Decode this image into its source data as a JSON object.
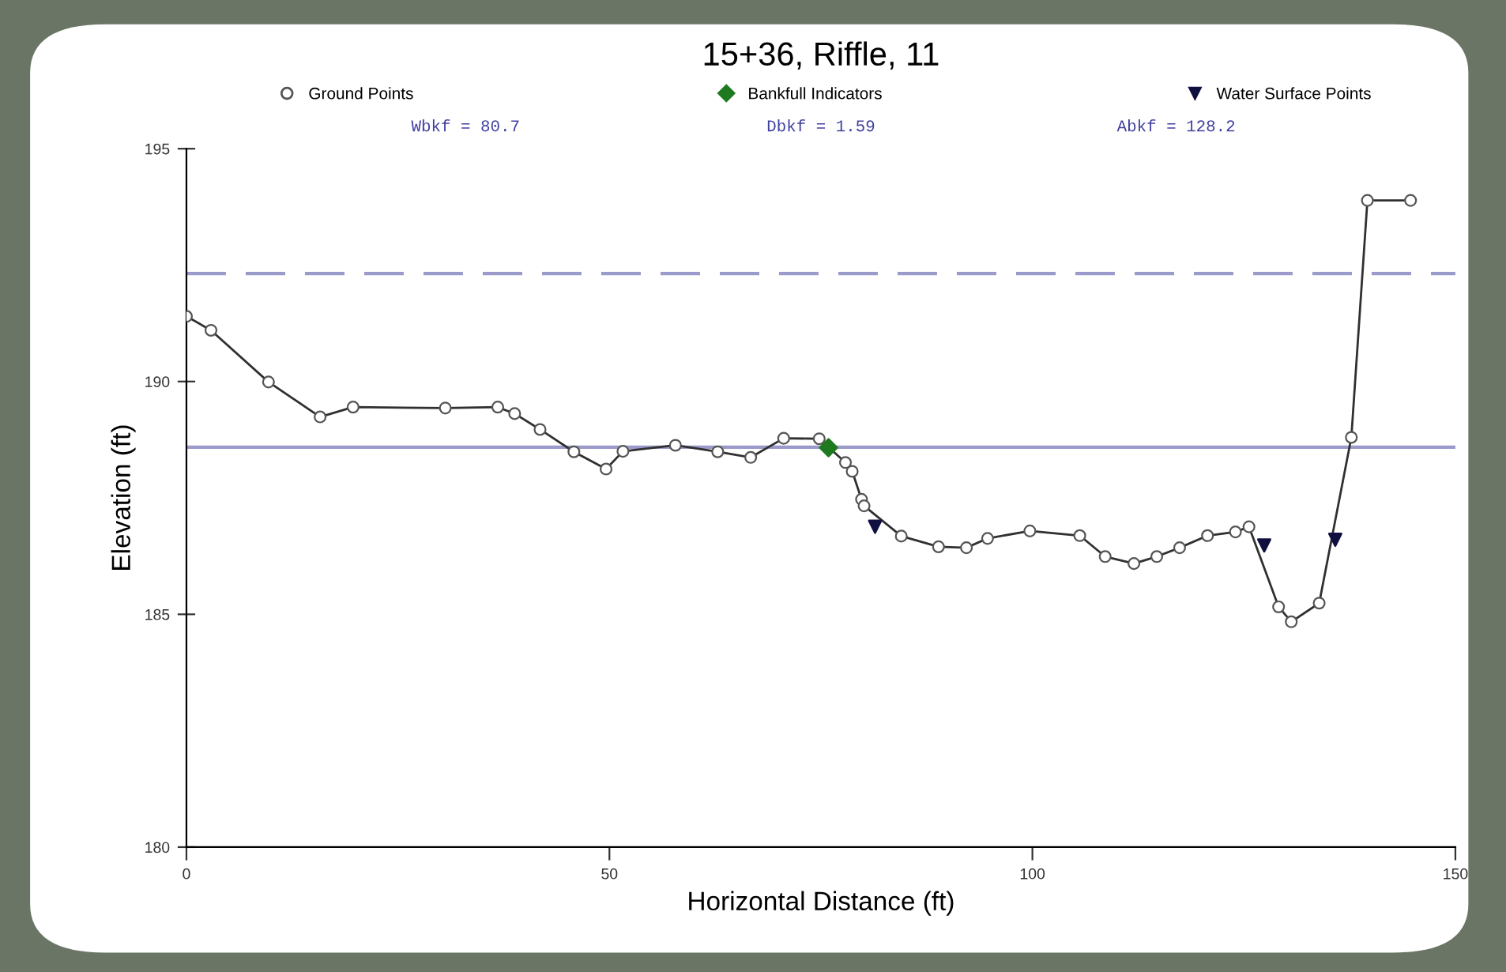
{
  "chart_data": {
    "type": "line",
    "title": "15+36, Riffle, 11",
    "xlabel": "Horizontal Distance (ft)",
    "ylabel": "Elevation (ft)",
    "annotations": [
      "Wbkf = 80.7",
      "Dbkf = 1.59",
      "Abkf = 128.2"
    ],
    "xlim": [
      0,
      150
    ],
    "xticks": [
      0,
      50,
      100,
      150
    ],
    "ylim": [
      180,
      195
    ],
    "yticks": [
      180,
      185,
      190,
      195
    ],
    "grid": false,
    "legend": "top",
    "ref_lines": [
      {
        "axis": "y",
        "value": 192.32,
        "color": "#9a9acb",
        "line_style": "dashed"
      },
      {
        "axis": "y",
        "value": 188.59,
        "color": "#9a9acb",
        "line_style": "solid"
      }
    ],
    "series": [
      {
        "name": "Ground Points",
        "marker": "circle",
        "color": "#303030",
        "x": [
          0,
          2.9,
          9.7,
          15.8,
          19.7,
          30.6,
          36.8,
          38.8,
          41.8,
          45.8,
          49.6,
          51.6,
          57.8,
          62.8,
          66.7,
          70.6,
          74.8,
          77.9,
          78.7,
          79.8,
          80.1,
          84.5,
          88.9,
          92.2,
          94.7,
          99.7,
          105.6,
          108.6,
          112.0,
          114.7,
          117.4,
          120.7,
          124.0,
          125.6,
          129.1,
          130.6,
          133.9,
          137.7,
          139.6,
          144.7
        ],
        "values": [
          191.4,
          191.1,
          189.99,
          189.24,
          189.45,
          189.43,
          189.45,
          189.31,
          188.97,
          188.49,
          188.12,
          188.5,
          188.63,
          188.49,
          188.37,
          188.78,
          188.77,
          188.26,
          188.07,
          187.47,
          187.33,
          186.68,
          186.45,
          186.43,
          186.63,
          186.79,
          186.69,
          186.24,
          186.09,
          186.24,
          186.43,
          186.69,
          186.77,
          186.88,
          185.16,
          184.84,
          185.24,
          188.8,
          193.89,
          193.89
        ]
      },
      {
        "name": "Bankfull Indicators",
        "type": "scatter",
        "marker": "diamond",
        "color": "#1f7a1f",
        "x": [
          75.9
        ],
        "values": [
          188.58
        ]
      },
      {
        "name": "Water Surface Points",
        "type": "scatter",
        "marker": "triangle",
        "color": "#101040",
        "x": [
          81.4,
          127.4,
          135.8
        ],
        "values": [
          186.88,
          186.48,
          186.6
        ]
      }
    ]
  }
}
